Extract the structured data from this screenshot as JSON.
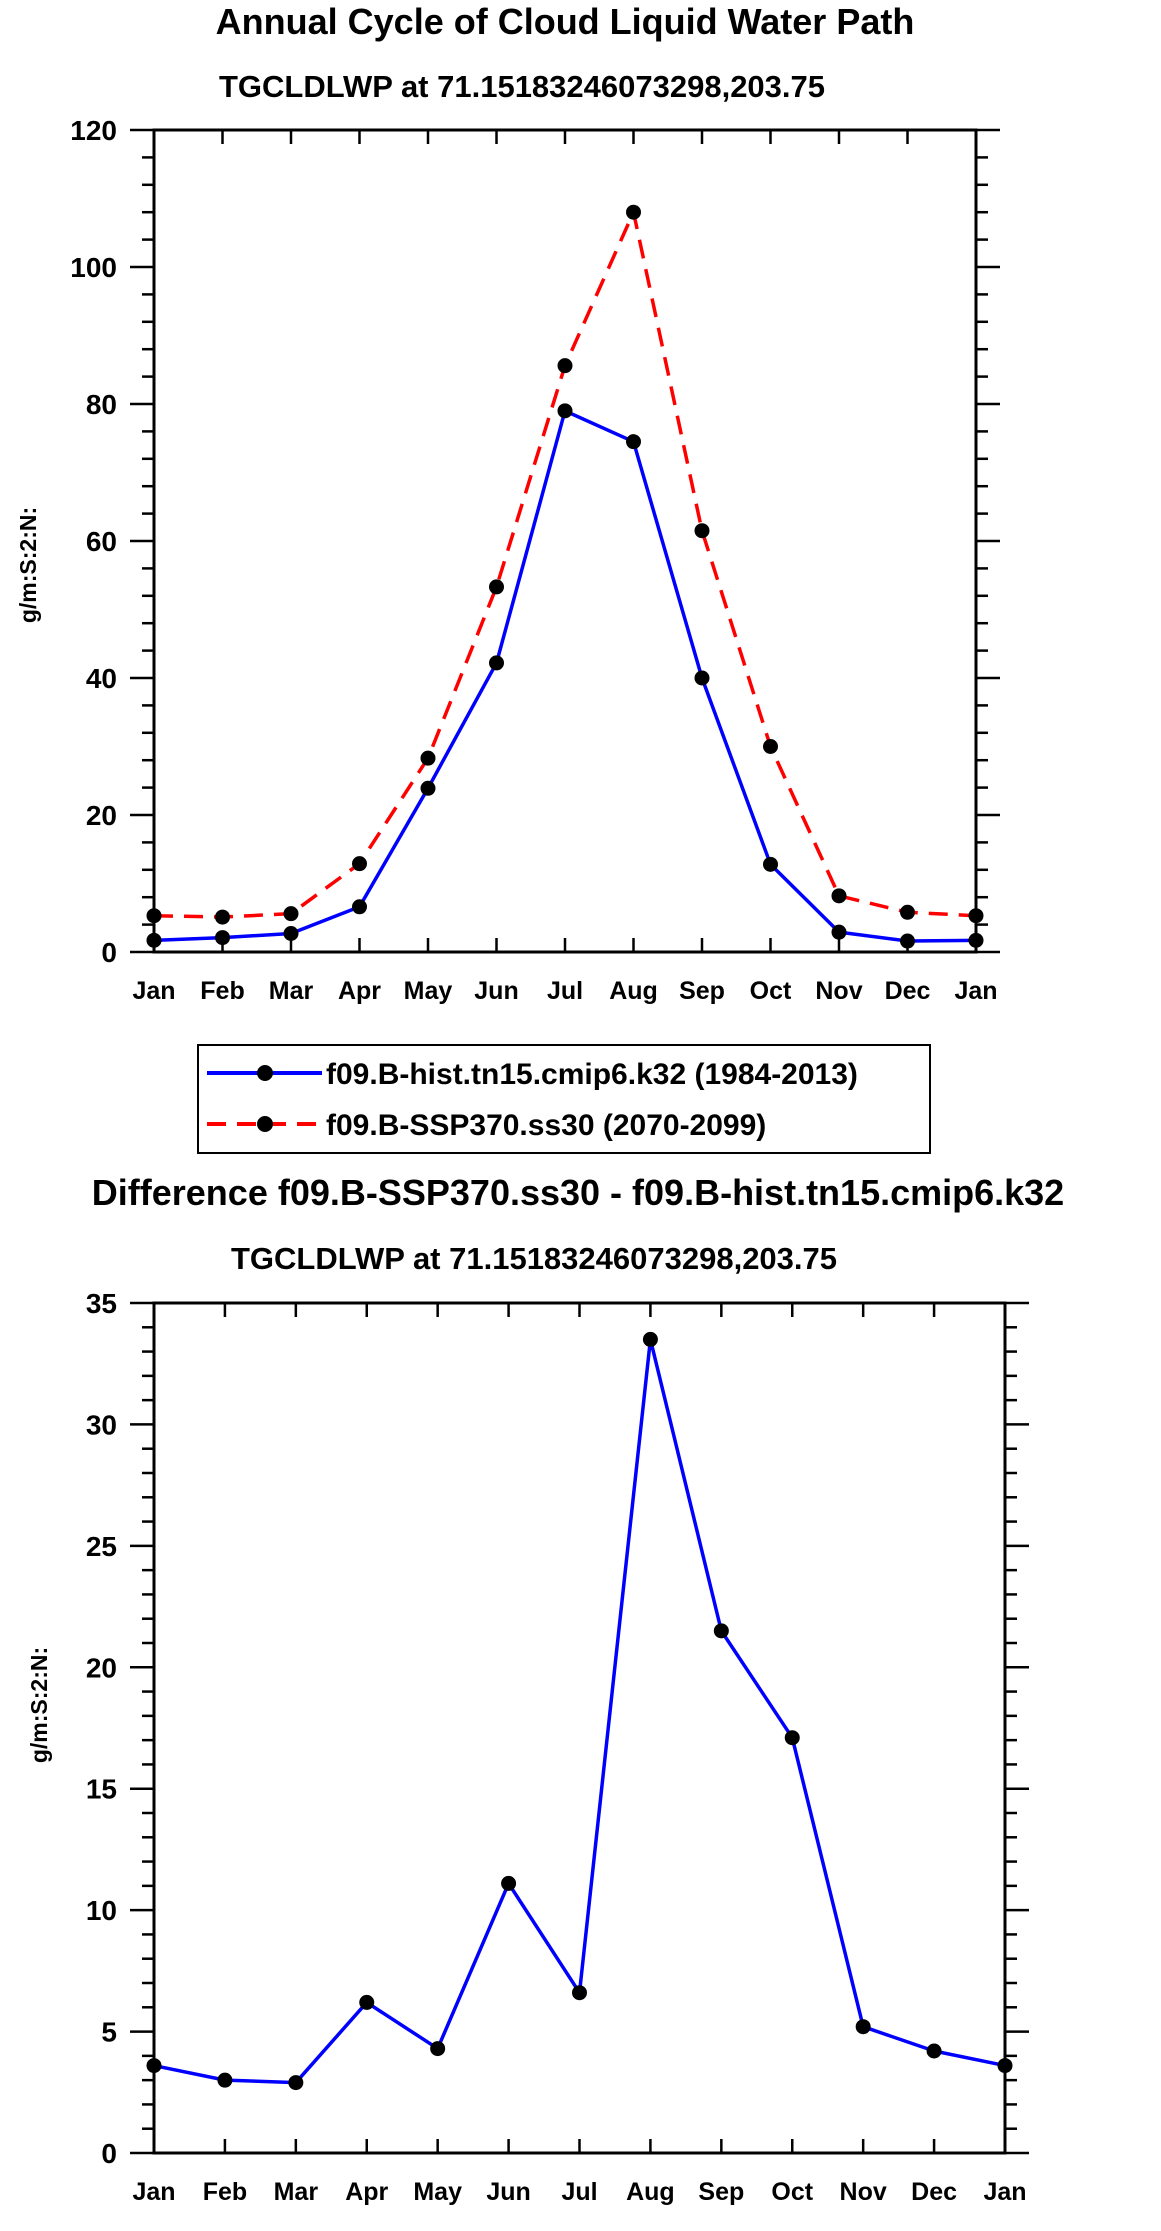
{
  "chart_data": [
    {
      "type": "line",
      "title": "Annual Cycle of Cloud Liquid Water Path",
      "subtitle": "TGCLDLWP at 71.15183246073298,203.75",
      "xlabel": "",
      "ylabel": "g/m:S:2:N:",
      "categories": [
        "Jan",
        "Feb",
        "Mar",
        "Apr",
        "May",
        "Jun",
        "Jul",
        "Aug",
        "Sep",
        "Oct",
        "Nov",
        "Dec",
        "Jan"
      ],
      "ylim": [
        0,
        120
      ],
      "yticks": [
        0,
        20,
        40,
        60,
        80,
        100,
        120
      ],
      "grid": false,
      "legend_position": "bottom",
      "series": [
        {
          "name": "f09.B-hist.tn15.cmip6.k32 (1984-2013)",
          "color": "#0000ff",
          "dash": "solid",
          "values": [
            1.7,
            2.1,
            2.7,
            6.6,
            23.9,
            42.2,
            79.0,
            74.5,
            40.0,
            12.8,
            2.9,
            1.6,
            1.7
          ]
        },
        {
          "name": "f09.B-SSP370.ss30 (2070-2099)",
          "color": "#ff0000",
          "dash": "dashed",
          "values": [
            5.3,
            5.1,
            5.6,
            12.9,
            28.3,
            53.3,
            85.6,
            108.0,
            61.5,
            30.0,
            8.2,
            5.8,
            5.3
          ]
        }
      ]
    },
    {
      "type": "line",
      "title": "Difference f09.B-SSP370.ss30 - f09.B-hist.tn15.cmip6.k32",
      "subtitle": "TGCLDLWP at 71.15183246073298,203.75",
      "xlabel": "",
      "ylabel": "g/m:S:2:N:",
      "categories": [
        "Jan",
        "Feb",
        "Mar",
        "Apr",
        "May",
        "Jun",
        "Jul",
        "Aug",
        "Sep",
        "Oct",
        "Nov",
        "Dec",
        "Jan"
      ],
      "ylim": [
        0,
        35
      ],
      "yticks": [
        0,
        5,
        10,
        15,
        20,
        25,
        30,
        35
      ],
      "grid": false,
      "series": [
        {
          "name": "Difference",
          "color": "#0000ff",
          "dash": "solid",
          "values": [
            3.6,
            3.0,
            2.9,
            6.2,
            4.3,
            11.1,
            6.6,
            33.5,
            21.5,
            17.1,
            5.2,
            4.2,
            3.6
          ]
        }
      ]
    }
  ]
}
